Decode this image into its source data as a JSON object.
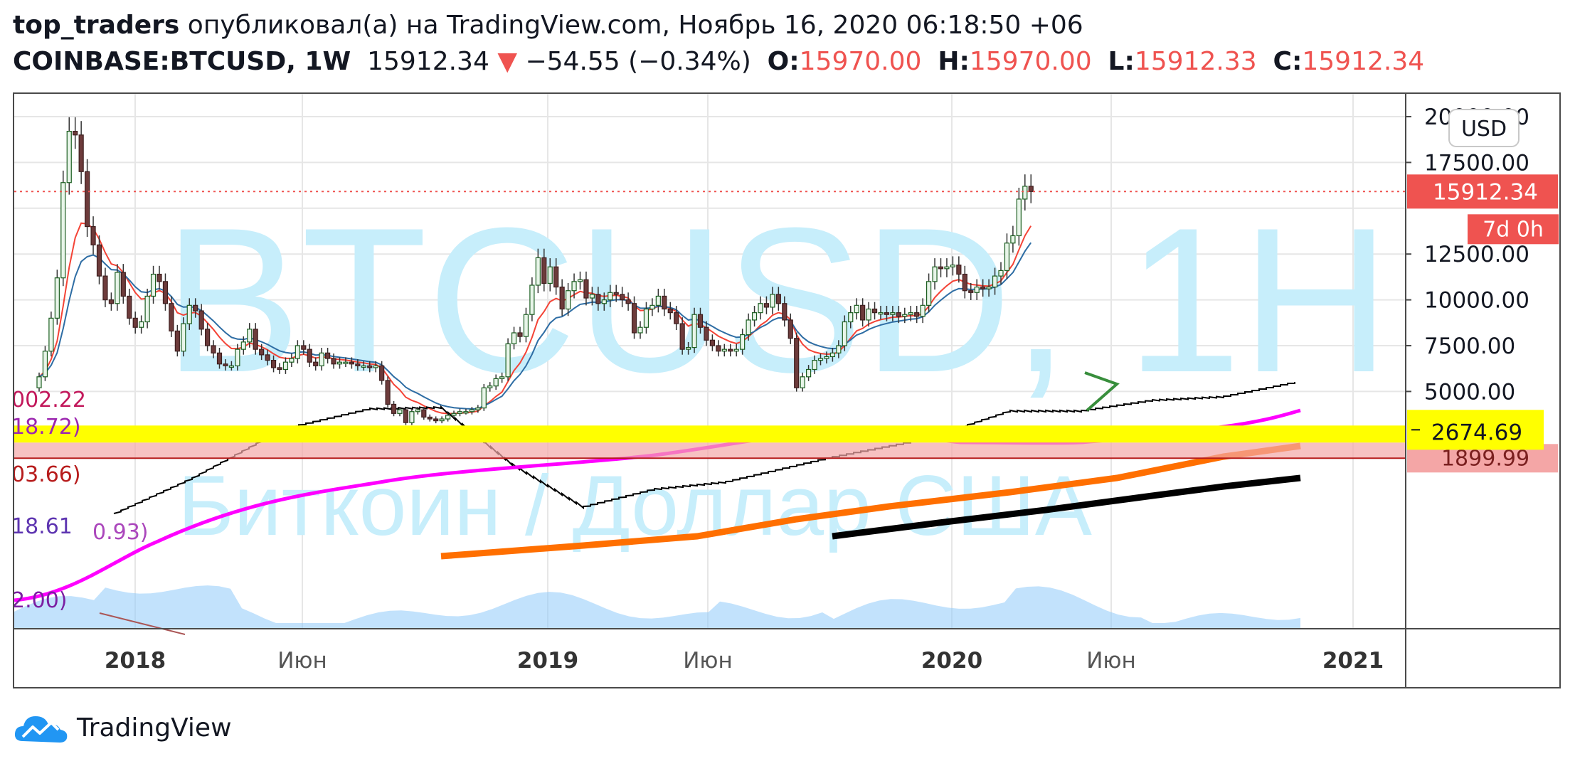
{
  "header": {
    "author": "top_traders",
    "published_text": "опубликовал(а) на TradingView.com, Ноябрь 16, 2020 06:18:50 +06",
    "symbol": "COINBASE:BTCUSD, 1W",
    "last_price": "15912.34",
    "change_arrow": "▼",
    "change": "−54.55 (−0.34%)",
    "o_label": "O:",
    "o_value": "15970.00",
    "h_label": "H:",
    "h_value": "15970.00",
    "l_label": "L:",
    "l_value": "15912.33",
    "c_label": "C:",
    "c_value": "15912.34"
  },
  "watermark": {
    "main": "BTCUSD, 1H",
    "sub": "Биткоин / Доллар США"
  },
  "footer": {
    "brand": "TradingView"
  },
  "colors": {
    "up": "#26a69a",
    "down": "#ef5350",
    "watermark": "#c7eefb",
    "ema_red": "#f44336",
    "ema_blue": "#2e6da4",
    "magenta": "#ff00ff",
    "orange": "#ff6f00",
    "black": "#000000",
    "yellow": "#ffff00",
    "volume": "#90caf9"
  },
  "chart_data": {
    "type": "candlestick",
    "currency_label": "USD",
    "y_ticks": [
      "20000.00",
      "17500.00",
      "12500.00",
      "10000.00",
      "7500.00",
      "5000.00"
    ],
    "x_labels": [
      "2018",
      "Июн",
      "2019",
      "Июн",
      "2020",
      "Июн",
      "2021"
    ],
    "ylim": [
      2000,
      20000
    ],
    "price_label": "15912.34",
    "countdown_label": "7d 0h",
    "level_label": "2674.69",
    "level_value": 2674.69,
    "hidden_label": "1899.99",
    "left_labels": [
      "002.22",
      "18.72)",
      "03.66)",
      "18.61",
      "0.93)",
      "2.00)"
    ],
    "closes": [
      5800,
      7200,
      9000,
      11200,
      16400,
      19200,
      19000,
      17000,
      14000,
      13000,
      11300,
      10000,
      9800,
      11500,
      10200,
      9000,
      8500,
      8800,
      10200,
      11400,
      11000,
      9800,
      8300,
      7200,
      8700,
      9700,
      9400,
      8400,
      7500,
      7100,
      6500,
      6400,
      6400,
      7300,
      7700,
      8400,
      7300,
      7000,
      6700,
      6300,
      6200,
      6600,
      6800,
      7500,
      7300,
      6600,
      6400,
      7100,
      6800,
      6500,
      6600,
      6600,
      6500,
      6400,
      6400,
      6300,
      6400,
      5600,
      4300,
      3800,
      4000,
      3300,
      3900,
      4000,
      3600,
      3500,
      3400,
      3500,
      3700,
      3800,
      3900,
      3900,
      4000,
      4100,
      5200,
      5300,
      5700,
      5800,
      7600,
      8200,
      8000,
      9200,
      10800,
      12300,
      10900,
      11800,
      10700,
      9500,
      10500,
      11000,
      11100,
      10100,
      10300,
      9800,
      10000,
      10400,
      10300,
      10000,
      9800,
      8200,
      8500,
      9500,
      9700,
      10200,
      9500,
      9300,
      8700,
      7300,
      7400,
      9200,
      8500,
      7800,
      7500,
      7200,
      7300,
      7200,
      7300,
      8100,
      8900,
      9300,
      9800,
      9600,
      10300,
      9800,
      8900,
      7900,
      5200,
      5800,
      6200,
      6700,
      6800,
      6900,
      7100,
      7500,
      8800,
      9300,
      9700,
      8900,
      9500,
      9300,
      9300,
      9200,
      9300,
      9100,
      9200,
      9300,
      9100,
      9700,
      11000,
      11800,
      11700,
      11800,
      11900,
      11400,
      10500,
      10400,
      10700,
      10600,
      10700,
      11300,
      11600,
      13100,
      13500,
      15500,
      16200,
      15912
    ]
  }
}
